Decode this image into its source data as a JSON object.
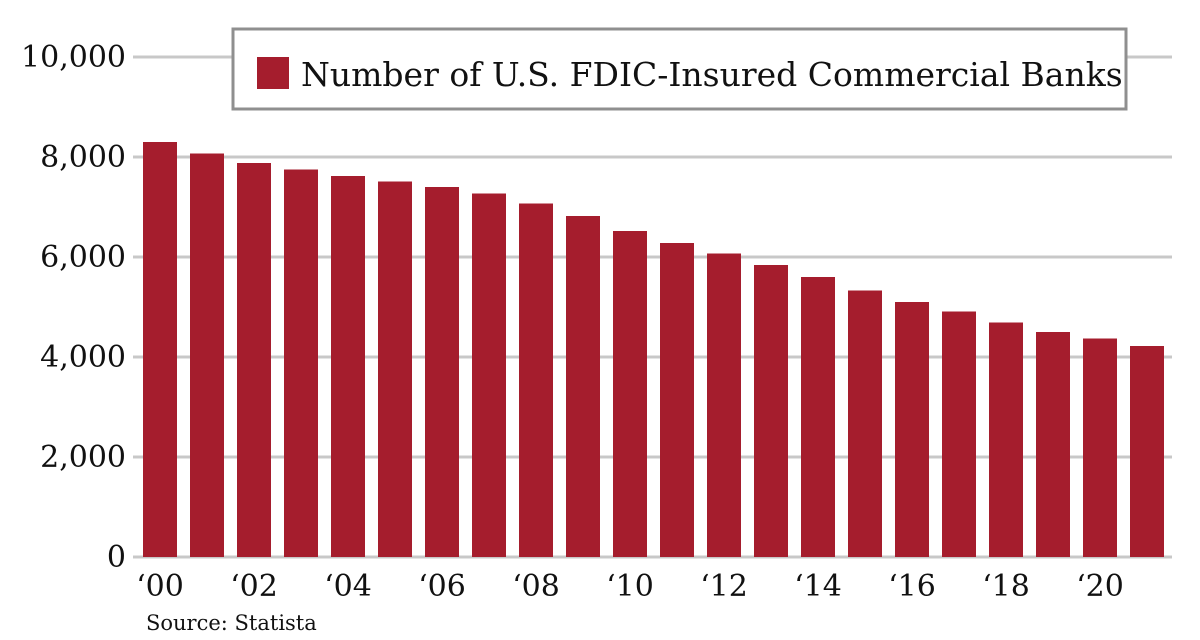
{
  "chart_data": {
    "type": "bar",
    "title": "",
    "xlabel": "",
    "ylabel": "",
    "categories": [
      "2000",
      "2001",
      "2002",
      "2003",
      "2004",
      "2005",
      "2006",
      "2007",
      "2008",
      "2009",
      "2010",
      "2011",
      "2012",
      "2013",
      "2014",
      "2015",
      "2016",
      "2017",
      "2018",
      "2019",
      "2020",
      "2021"
    ],
    "x_tick_labels": [
      "‘00",
      "‘02",
      "‘04",
      "‘06",
      "‘08",
      "‘10",
      "‘12",
      "‘14",
      "‘16",
      "‘18",
      "‘20"
    ],
    "series": [
      {
        "name": "Number of U.S. FDIC-Insured Commercial Banks",
        "values": [
          8300,
          8070,
          7880,
          7750,
          7620,
          7510,
          7400,
          7270,
          7070,
          6820,
          6520,
          6280,
          6070,
          5840,
          5600,
          5330,
          5100,
          4910,
          4690,
          4500,
          4370,
          4220
        ],
        "color": "#a51d2d"
      }
    ],
    "ylim": [
      0,
      10000
    ],
    "y_ticks": [
      0,
      2000,
      4000,
      6000,
      8000,
      10000
    ],
    "y_tick_labels": [
      "0",
      "2,000",
      "4,000",
      "6,000",
      "8,000",
      "10,000"
    ],
    "grid": true,
    "grid_color": "#c8c8c8",
    "legend_position": "top-right",
    "legend_border_color": "#8f8f8f",
    "source": "Source: Statista"
  }
}
